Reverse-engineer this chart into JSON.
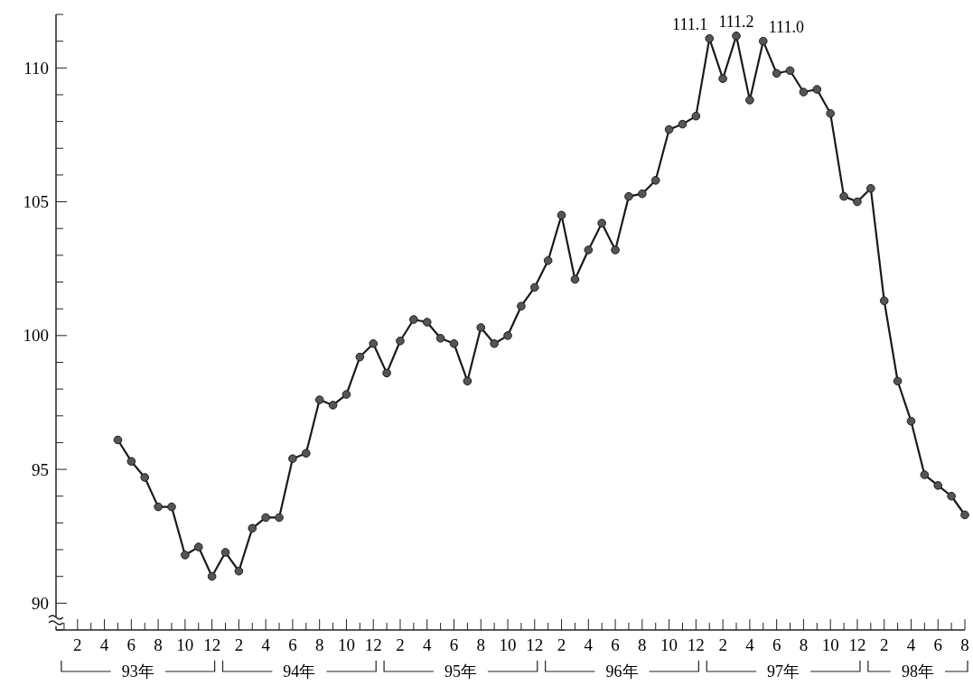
{
  "chart_data": {
    "type": "line",
    "categories": [
      null,
      "2",
      null,
      "4",
      null,
      "6",
      null,
      "8",
      null,
      "10",
      null,
      "12",
      null,
      "2",
      null,
      "4",
      null,
      "6",
      null,
      "8",
      null,
      "10",
      null,
      "12",
      null,
      "2",
      null,
      "4",
      null,
      "6",
      null,
      "8",
      null,
      "10",
      null,
      "12",
      null,
      "2",
      null,
      "4",
      null,
      "6",
      null,
      "8",
      null,
      "10",
      null,
      "12",
      null,
      "2",
      null,
      "4",
      null,
      "6",
      null,
      "8",
      null,
      "10",
      null,
      "12",
      null,
      "2",
      null,
      "4",
      null,
      "6",
      null,
      "8"
    ],
    "series": [
      {
        "color": "#1a1a1a",
        "values": [
          null,
          null,
          null,
          null,
          96.1,
          95.3,
          94.7,
          93.6,
          93.6,
          91.8,
          92.1,
          91.0,
          91.9,
          91.2,
          92.8,
          93.2,
          93.2,
          95.4,
          95.6,
          97.6,
          97.4,
          97.8,
          99.2,
          99.7,
          98.6,
          99.8,
          100.6,
          100.5,
          99.9,
          99.7,
          98.3,
          100.3,
          99.7,
          100.0,
          101.1,
          101.8,
          102.8,
          104.5,
          102.1,
          103.2,
          104.2,
          103.2,
          105.2,
          105.3,
          105.8,
          107.7,
          107.9,
          108.2,
          111.1,
          109.6,
          111.2,
          108.8,
          111.0,
          109.8,
          109.9,
          109.1,
          109.2,
          108.3,
          105.2,
          105.0,
          105.5,
          101.3,
          98.3,
          96.8,
          94.8,
          94.4,
          94.0,
          93.3
        ],
        "value_labels": [
          null,
          null,
          null,
          null,
          null,
          null,
          null,
          null,
          null,
          null,
          null,
          null,
          null,
          null,
          null,
          null,
          null,
          null,
          null,
          null,
          null,
          null,
          null,
          null,
          null,
          null,
          null,
          null,
          null,
          null,
          null,
          null,
          null,
          null,
          null,
          null,
          null,
          null,
          null,
          null,
          null,
          null,
          null,
          null,
          null,
          null,
          null,
          null,
          "111.1",
          null,
          "111.2",
          null,
          "111.0",
          null,
          null,
          null,
          null,
          null,
          null,
          null,
          null,
          null,
          null,
          null,
          null,
          null,
          null,
          null
        ]
      }
    ],
    "marker": "circle",
    "line_style": "solid",
    "grid": false,
    "ylim": [
      89,
      112
    ],
    "yticks": [
      {
        "value": 89,
        "label": null
      },
      90,
      {
        "value": 91,
        "label": null
      },
      {
        "value": 92,
        "label": null
      },
      {
        "value": 93,
        "label": null
      },
      {
        "value": 94,
        "label": null
      },
      95,
      {
        "value": 96,
        "label": null
      },
      {
        "value": 97,
        "label": null
      },
      {
        "value": 98,
        "label": null
      },
      {
        "value": 99,
        "label": null
      },
      100,
      {
        "value": 101,
        "label": null
      },
      {
        "value": 102,
        "label": null
      },
      {
        "value": 103,
        "label": null
      },
      {
        "value": 104,
        "label": null
      },
      105,
      {
        "value": 106,
        "label": null
      },
      {
        "value": 107,
        "label": null
      },
      {
        "value": 108,
        "label": null
      },
      {
        "value": 109,
        "label": null
      },
      110,
      {
        "value": 111,
        "label": null
      },
      {
        "value": 112,
        "label": null
      }
    ],
    "annotations": [
      "93年",
      "94年",
      "95年",
      "96年",
      "97年",
      "98年"
    ]
  }
}
